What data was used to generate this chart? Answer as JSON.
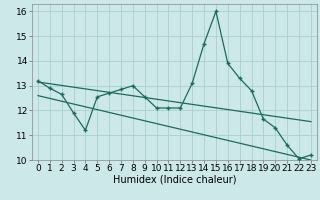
{
  "xlabel": "Humidex (Indice chaleur)",
  "xlim": [
    -0.5,
    23.5
  ],
  "ylim": [
    10,
    16.3
  ],
  "yticks": [
    10,
    11,
    12,
    13,
    14,
    15,
    16
  ],
  "xticks": [
    0,
    1,
    2,
    3,
    4,
    5,
    6,
    7,
    8,
    9,
    10,
    11,
    12,
    13,
    14,
    15,
    16,
    17,
    18,
    19,
    20,
    21,
    22,
    23
  ],
  "bg_color": "#cce8e8",
  "grid_color": "#aad0d0",
  "line_color": "#1a6b5e",
  "data_x": [
    0,
    1,
    2,
    3,
    4,
    5,
    6,
    7,
    8,
    9,
    10,
    11,
    12,
    13,
    14,
    15,
    16,
    17,
    18,
    19,
    20,
    21,
    22,
    23
  ],
  "data_y": [
    13.2,
    12.9,
    12.65,
    11.9,
    11.2,
    12.55,
    12.7,
    12.85,
    13.0,
    12.55,
    12.1,
    12.1,
    12.1,
    13.1,
    14.7,
    16.0,
    13.9,
    13.3,
    12.8,
    11.65,
    11.3,
    10.6,
    10.05,
    10.2
  ],
  "trend1_x": [
    0,
    23
  ],
  "trend1_y": [
    13.15,
    11.55
  ],
  "trend2_x": [
    0,
    23
  ],
  "trend2_y": [
    12.6,
    10.0
  ],
  "fontsize_label": 7,
  "fontsize_tick": 6.5
}
